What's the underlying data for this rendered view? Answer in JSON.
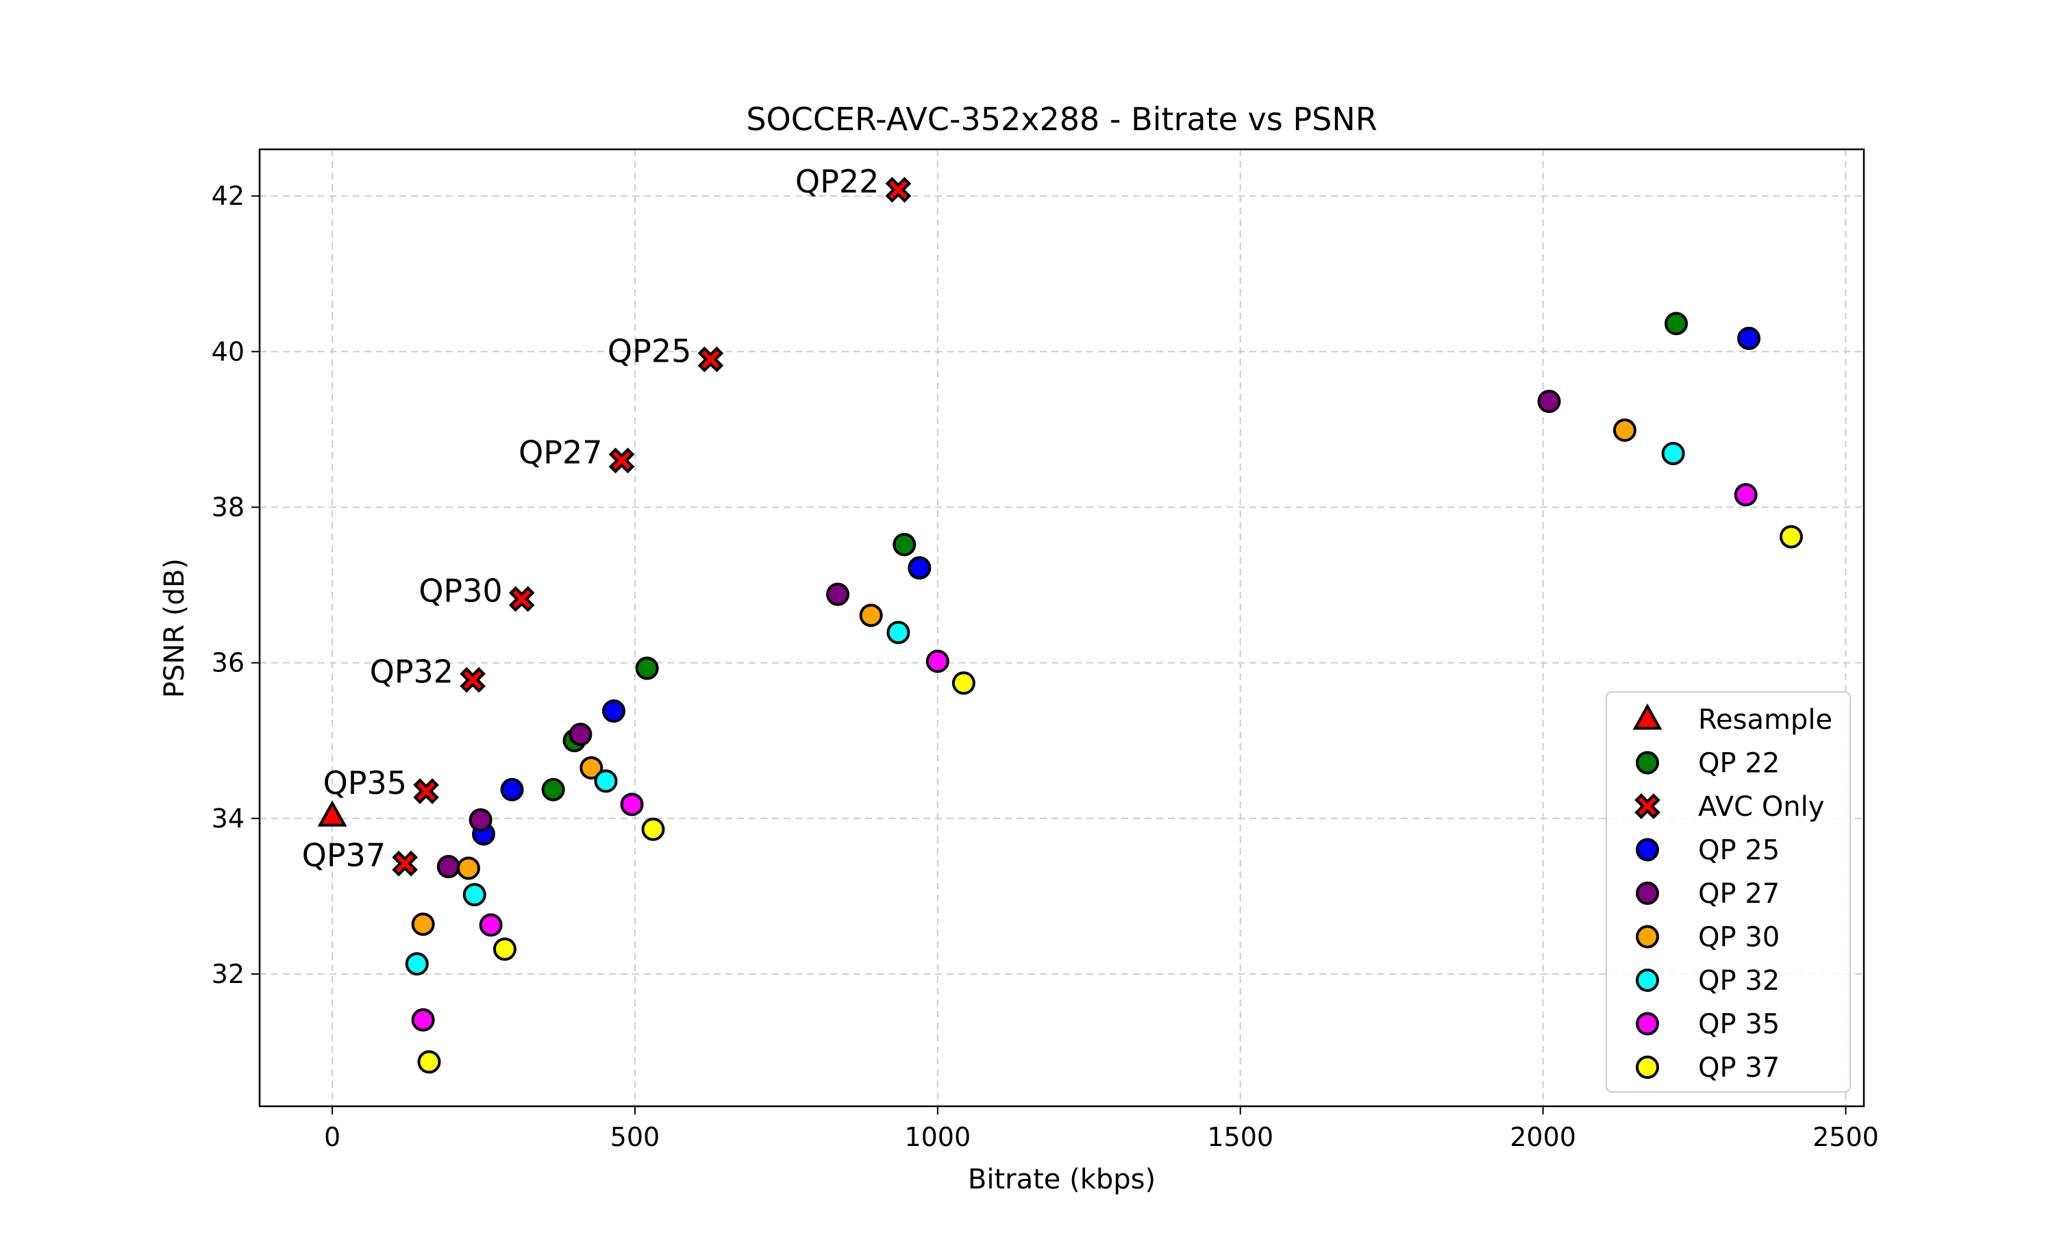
{
  "chart_data": {
    "type": "scatter",
    "title": "SOCCER-AVC-352x288 - Bitrate vs PSNR",
    "xlabel": "Bitrate (kbps)",
    "ylabel": "PSNR (dB)",
    "xlim": [
      -120,
      2530
    ],
    "ylim": [
      30.3,
      42.6
    ],
    "xticks": [
      0,
      500,
      1000,
      1500,
      2000,
      2500
    ],
    "yticks": [
      32,
      34,
      36,
      38,
      40,
      42
    ],
    "grid": true,
    "legend_position": "lower-right",
    "series": [
      {
        "name": "Resample",
        "marker": "triangle",
        "color": "#ff0000",
        "points": [
          {
            "x": 0,
            "y": 34.03
          }
        ]
      },
      {
        "name": "QP 22",
        "marker": "circle",
        "color": "#008000",
        "points": [
          {
            "x": 2220,
            "y": 40.36
          },
          {
            "x": 945,
            "y": 37.52
          },
          {
            "x": 520,
            "y": 35.93
          },
          {
            "x": 365,
            "y": 34.37
          },
          {
            "x": 400,
            "y": 35.0
          }
        ]
      },
      {
        "name": "AVC Only",
        "marker": "x",
        "color": "#ff0000",
        "points": [
          {
            "x": 935,
            "y": 42.08,
            "label": "QP22"
          },
          {
            "x": 625,
            "y": 39.9,
            "label": "QP25"
          },
          {
            "x": 478,
            "y": 38.6,
            "label": "QP27"
          },
          {
            "x": 313,
            "y": 36.82,
            "label": "QP30"
          },
          {
            "x": 232,
            "y": 35.78,
            "label": "QP32"
          },
          {
            "x": 155,
            "y": 34.35,
            "label": "QP35"
          },
          {
            "x": 120,
            "y": 33.42,
            "label": "QP37"
          }
        ]
      },
      {
        "name": "QP 25",
        "marker": "circle",
        "color": "#0000ff",
        "points": [
          {
            "x": 2340,
            "y": 40.17
          },
          {
            "x": 970,
            "y": 37.22
          },
          {
            "x": 465,
            "y": 35.38
          },
          {
            "x": 297,
            "y": 34.37
          },
          {
            "x": 250,
            "y": 33.8
          }
        ]
      },
      {
        "name": "QP 27",
        "marker": "circle",
        "color": "#800080",
        "points": [
          {
            "x": 2010,
            "y": 39.36
          },
          {
            "x": 835,
            "y": 36.88
          },
          {
            "x": 410,
            "y": 35.08
          },
          {
            "x": 245,
            "y": 33.98
          },
          {
            "x": 192,
            "y": 33.38
          }
        ]
      },
      {
        "name": "QP 30",
        "marker": "circle",
        "color": "#ffa500",
        "points": [
          {
            "x": 2135,
            "y": 38.99
          },
          {
            "x": 890,
            "y": 36.61
          },
          {
            "x": 428,
            "y": 34.65
          },
          {
            "x": 225,
            "y": 33.36
          },
          {
            "x": 150,
            "y": 32.64
          }
        ]
      },
      {
        "name": "QP 32",
        "marker": "circle",
        "color": "#00ffff",
        "points": [
          {
            "x": 2215,
            "y": 38.69
          },
          {
            "x": 935,
            "y": 36.39
          },
          {
            "x": 452,
            "y": 34.48
          },
          {
            "x": 235,
            "y": 33.02
          },
          {
            "x": 140,
            "y": 32.13
          }
        ]
      },
      {
        "name": "QP 35",
        "marker": "circle",
        "color": "#ff00ff",
        "points": [
          {
            "x": 2335,
            "y": 38.16
          },
          {
            "x": 1000,
            "y": 36.02
          },
          {
            "x": 495,
            "y": 34.18
          },
          {
            "x": 262,
            "y": 32.63
          },
          {
            "x": 150,
            "y": 31.41
          }
        ]
      },
      {
        "name": "QP 37",
        "marker": "circle",
        "color": "#ffff00",
        "points": [
          {
            "x": 2410,
            "y": 37.62
          },
          {
            "x": 1043,
            "y": 35.74
          },
          {
            "x": 530,
            "y": 33.86
          },
          {
            "x": 285,
            "y": 32.32
          },
          {
            "x": 160,
            "y": 30.87
          }
        ]
      }
    ]
  }
}
